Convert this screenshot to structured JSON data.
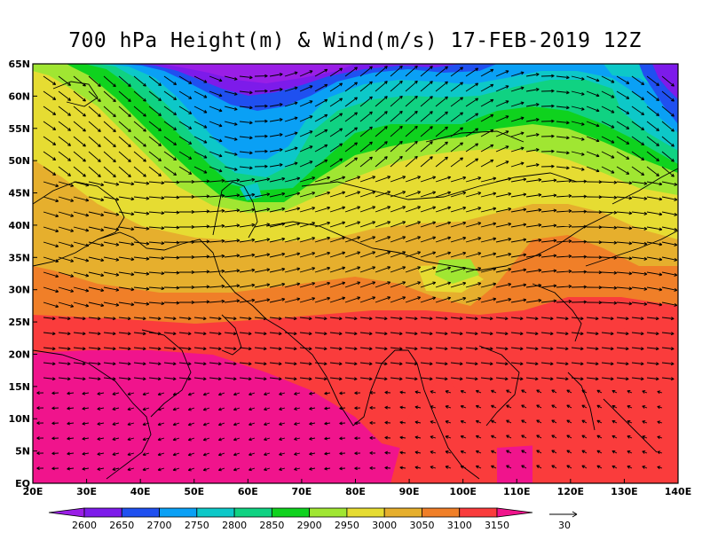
{
  "title": "700 hPa Height(m) & Wind(m/s) 17-FEB-2019 12Z",
  "map": {
    "lon_labels": [
      "20E",
      "30E",
      "40E",
      "50E",
      "60E",
      "70E",
      "80E",
      "90E",
      "100E",
      "110E",
      "120E",
      "130E",
      "140E"
    ],
    "lat_labels": [
      "EQ",
      "5N",
      "10N",
      "15N",
      "20N",
      "25N",
      "30N",
      "35N",
      "40N",
      "45N",
      "50N",
      "55N",
      "60N",
      "65N"
    ],
    "lon_range": [
      20,
      140
    ],
    "lat_range": [
      0,
      65
    ]
  },
  "colorbar": {
    "levels": [
      "2600",
      "2650",
      "2700",
      "2750",
      "2800",
      "2850",
      "2900",
      "2950",
      "3000",
      "3050",
      "3100",
      "3150"
    ],
    "colors": [
      "#9a1ee6",
      "#7d1bea",
      "#1f50f0",
      "#0aa0f5",
      "#0dc8c8",
      "#10d282",
      "#0fd21e",
      "#a0e632",
      "#e6dc32",
      "#e6af2d",
      "#f07f28",
      "#fa3c3c",
      "#f0148c"
    ]
  },
  "wind_ref": {
    "value": "30"
  },
  "palette": {
    "purple": "#9a1ee6",
    "blue": "#1f50f0",
    "sky": "#0aa0f5",
    "cyan": "#0dc8c8",
    "teal": "#10d282",
    "green": "#0fd21e",
    "lime": "#a0e632",
    "yellow": "#e6dc32",
    "gold": "#e6af2d",
    "orange": "#f07f28",
    "red": "#fa3c3c",
    "magenta": "#f0148c"
  }
}
